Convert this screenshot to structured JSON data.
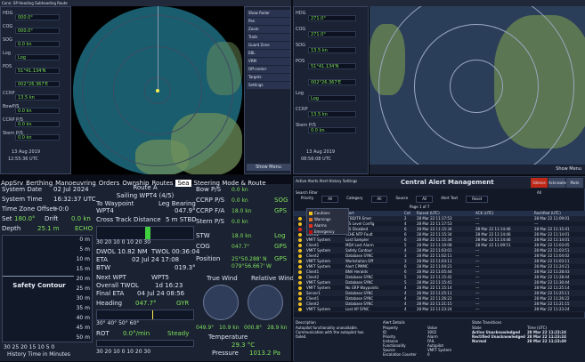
{
  "top_left": {
    "title_bar": "Conn: SP Heading Subheading Route",
    "fields": [
      {
        "k": "HDG",
        "v": "000.0°"
      },
      {
        "k": "COG",
        "v": "000.0°"
      },
      {
        "k": "SOG",
        "v": "0.0 kn"
      },
      {
        "k": "Log",
        "v": "Log"
      },
      {
        "k": "POS",
        "v": "51°41.134'N"
      },
      {
        "k": "",
        "v": "002°26.367'E"
      },
      {
        "k": "CCRP",
        "v": "13.5 kn"
      },
      {
        "k": "BowP/S",
        "v": "0.0 kn"
      },
      {
        "k": "CCRP P/S",
        "v": "0.0 kn"
      },
      {
        "k": "Stern P/S",
        "v": "0.0 kn"
      }
    ],
    "date": "13 Aug 2019",
    "time": "12:55:36 UTC",
    "status": "Show Menu"
  },
  "top_right": {
    "fields": [
      {
        "k": "HDG",
        "v": "271.0°"
      },
      {
        "k": "COG",
        "v": "271.0°"
      },
      {
        "k": "SOG",
        "v": "13.5 kn"
      },
      {
        "k": "POS",
        "v": "51°41.134'N"
      },
      {
        "k": "",
        "v": "002°26.367'E"
      },
      {
        "k": "Log",
        "v": "Log"
      },
      {
        "k": "CCRP",
        "v": "13.5 kn"
      },
      {
        "k": "Stern P/S",
        "v": "0.0 kn"
      }
    ],
    "date": "13 Aug 2019",
    "time": "08:56:08 UTC",
    "status": "Show Menu"
  },
  "tool_menu": [
    "Show Radar",
    "Pan",
    "Zoom",
    "Trails",
    "Guard Zone",
    "EBL",
    "VRM",
    "Off-center",
    "Targets",
    "Settings"
  ],
  "tabs": [
    "AppSrv",
    "Berthing",
    "Manoeuvring",
    "Orders",
    "Ownship",
    "Routes",
    "Sea",
    "Steering Mode & Route"
  ],
  "active_tab": "Sea",
  "left_col": [
    {
      "k": "System Date",
      "v": "02 Jul 2024"
    },
    {
      "k": "System Time",
      "v": "16:32:37 UTC"
    },
    {
      "k": "Time Zone Offset",
      "v": "+0:0"
    },
    {
      "k": "Set",
      "v": "180.0°",
      "k2": "Drift",
      "v2": "0.0 kn"
    },
    {
      "k": "Depth",
      "v": "25.1 m",
      "badge": "ECHO"
    }
  ],
  "depth_scale": [
    "0 m",
    "5 m",
    "10 m",
    "15 m",
    "20 m",
    "25 m",
    "30 m",
    "35 m",
    "40 m",
    "45 m",
    "50 m"
  ],
  "safety_contour": "Safety Contour",
  "history_axis": "30  25  20  15  10   5    0",
  "history_label": "History Time in Minutes",
  "route": {
    "title": "Route A",
    "sailing": "Sailing  WPT4 (4/5)",
    "to_wp": "To Waypoint",
    "to_wp_v": "WPT4",
    "leg_bearing": "Leg Bearing",
    "leg_bearing_v": "047.9°",
    "xtd": "Cross Track Distance",
    "xtd_v": "5 m STBD",
    "xtd_scale": "30  20  10   0   10  20  30",
    "dwol": "DWOL  10.82 NM",
    "twol": "TWOL  00:36:04",
    "eta": "ETA",
    "eta_v": "02 Jul 24 17:08",
    "btw": "BTW",
    "btw_v": "019.3°",
    "next_wpt": "Next WPT",
    "next_wpt_v": "WPT5",
    "overall_twol": "Overall TWOL",
    "overall_twol_v": "1d 16:23",
    "final_eta": "Final ETA",
    "final_eta_v": "04 Jul 24 08:56",
    "heading": "Heading",
    "heading_v": "047.7°",
    "heading_mode": "GYR",
    "heading_scale": "30°   40°   50°   60°",
    "rot": "ROT",
    "rot_v": "0.0°/min",
    "rot_state": "Steady",
    "rot_scale": "30  20  10   0   10  20  30"
  },
  "speeds": [
    {
      "k": "Bow P/S",
      "v": "0.0 kn"
    },
    {
      "k": "CCRP P/S",
      "v": "0.0 kn",
      "badge": "SOG"
    },
    {
      "k": "CCRP F/A",
      "v": "18.0 kn",
      "badge": "GPS"
    },
    {
      "k": "Stern P/S",
      "v": "0.0 kn"
    },
    {
      "k": "STW",
      "v": "18.0 kn",
      "badge": "Log"
    },
    {
      "k": "COG",
      "v": "047.7°",
      "badge": "GPS"
    },
    {
      "k": "Position",
      "v": "25°50.288' N",
      "v2": "079°56.667' W",
      "badge": "GPS"
    }
  ],
  "wind": {
    "true": "True Wind",
    "true_a": "049.9°",
    "true_b": "10.9 kn",
    "rel": "Relative Wind",
    "rel_a": "000.8°",
    "rel_b": "28.9 kn",
    "temp_k": "Temperature",
    "temp_v": "29.3 °C",
    "press_k": "Pressure",
    "press_v": "1013.2 Pa"
  },
  "alerts": {
    "title": "Central Alert Management",
    "top_menu": "Active Alerts  Alert History  Settings",
    "search": "Search Filter",
    "filter_labels": [
      "Priority",
      "All",
      "Category",
      "All",
      "Source",
      "All",
      "Alert Text",
      "Reset"
    ],
    "page": "Page 1 of 7",
    "headers": [
      "",
      "Source",
      "Alert",
      "Cnt",
      "Raised (UTC)",
      "ACK (UTC)",
      "Rectified (UTC)"
    ],
    "legend": [
      "Cautions",
      "Warnings",
      "Alarms",
      "Emergency"
    ],
    "rows": [
      {
        "src": "VMFT System",
        "alert": "STBD/TR Emer",
        "cnt": "2",
        "raised": "28 Mar 22 11:17:53",
        "ack": "---",
        "rect": "28 Mar 22 11:09:01",
        "red": false
      },
      {
        "src": "Client1",
        "alert": "AIS Level Config",
        "cnt": "4",
        "raised": "28 Mar 22 11:17:53",
        "ack": "---",
        "rect": "---",
        "red": false
      },
      {
        "src": "VMFT System",
        "alert": "AIS Disabled",
        "cnt": "6",
        "raised": "28 Mar 22 11:15:34",
        "ack": "28 Mar 22 11:14:46",
        "rect": "28 Mar 22 11:15:41",
        "red": true
      },
      {
        "src": "Client2",
        "alert": "TCHE NTP Fault",
        "cnt": "6",
        "raised": "28 Mar 22 11:15:34",
        "ack": "28 Mar 22 11:14:46",
        "rect": "28 Mar 22 11:14:01",
        "red": false
      },
      {
        "src": "VMFT System",
        "alert": "Lost Sampler",
        "cnt": "6",
        "raised": "28 Mar 22 11:15:34",
        "ack": "28 Mar 22 11:14:46",
        "rect": "28 Mar 22 11:14:01",
        "red": false
      },
      {
        "src": "Client1",
        "alert": "MDA Lost Alarm",
        "cnt": "5",
        "raised": "28 Mar 22 11:10:08",
        "ack": "28 Mar 22 11:09:51",
        "rect": "28 Mar 22 11:03:05",
        "red": false
      },
      {
        "src": "VMFT System",
        "alert": "Safety Contour",
        "cnt": "4",
        "raised": "28 Mar 22 11:03:01",
        "ack": "---",
        "rect": "28 Mar 22 11:03:51",
        "red": false
      },
      {
        "src": "Client2",
        "alert": "Database SYNC",
        "cnt": "3",
        "raised": "28 Mar 22 11:02:11",
        "ack": "---",
        "rect": "28 Mar 22 11:04:02",
        "red": false
      },
      {
        "src": "VMFT System",
        "alert": "Workstation Off",
        "cnt": "3",
        "raised": "28 Mar 22 11:03:11",
        "ack": "---",
        "rect": "28 Mar 22 11:03:11",
        "red": false
      },
      {
        "src": "VMFT System",
        "alert": "Alert CPMMC",
        "cnt": "6",
        "raised": "28 Mar 22 11:04:21",
        "ack": "---",
        "rect": "28 Mar 22 11:24:21",
        "red": false
      },
      {
        "src": "Client1",
        "alert": "BNV Heralds",
        "cnt": "6",
        "raised": "28 Mar 22 11:05:44",
        "ack": "---",
        "rect": "28 Mar 22 11:28:43",
        "red": false
      },
      {
        "src": "Client2",
        "alert": "Database SYNC",
        "cnt": "5",
        "raised": "28 Mar 22 11:15:42",
        "ack": "---",
        "rect": "28 Mar 22 11:28:44",
        "red": false
      },
      {
        "src": "VMFT System",
        "alert": "Database SYNC",
        "cnt": "5",
        "raised": "28 Mar 22 11:15:41",
        "ack": "---",
        "rect": "28 Mar 22 11:30:44",
        "red": false
      },
      {
        "src": "VMFT System",
        "alert": "No GRP Waypoints",
        "cnt": "4",
        "raised": "28 Mar 22 11:15:14",
        "ack": "---",
        "rect": "28 Mar 22 11:25:14",
        "red": false
      },
      {
        "src": "Server1",
        "alert": "Database SYNC",
        "cnt": "4",
        "raised": "28 Mar 22 11:25:11",
        "ack": "---",
        "rect": "28 Mar 22 11:25:11",
        "red": false
      },
      {
        "src": "Client1",
        "alert": "Database SYNC",
        "cnt": "4",
        "raised": "28 Mar 22 11:26:22",
        "ack": "---",
        "rect": "28 Mar 22 11:26:22",
        "red": false
      },
      {
        "src": "Client2",
        "alert": "Database SYNC",
        "cnt": "4",
        "raised": "28 Mar 22 11:21:15",
        "ack": "---",
        "rect": "28 Mar 22 11:21:15",
        "red": false
      },
      {
        "src": "VMFT System",
        "alert": "Lost AP SYNC",
        "cnt": "4",
        "raised": "28 Mar 22 11:23:24",
        "ack": "---",
        "rect": "28 Mar 22 11:23:24",
        "red": false
      }
    ],
    "detail": {
      "desc_k": "Description",
      "desc_v": "Autopilot functionality unavailable. Communication with the autopilot has failed.",
      "details_k": "Alert Details",
      "items": [
        [
          "Property",
          "Value"
        ],
        [
          "ID",
          "3002"
        ],
        [
          "Priority",
          "Alarm"
        ],
        [
          "Instance",
          "FAIL"
        ],
        [
          "Functionality",
          "Autopilot"
        ],
        [
          "Source",
          "VMFT System"
        ],
        [
          "Escalation Counter",
          "0"
        ]
      ],
      "state_k": "State Transitions",
      "state": [
        [
          "State",
          "Time (UTC)"
        ],
        [
          "Active Unacknowledged",
          "28 Mar 22 11:23:24"
        ],
        [
          "Rectified Unacknowledged",
          "28 Mar 22 11:23:24"
        ],
        [
          "Normal",
          "28 Mar 22 11:23:49"
        ]
      ]
    },
    "buttons": [
      "Silence All",
      "Acknowledge",
      "Mute"
    ]
  }
}
